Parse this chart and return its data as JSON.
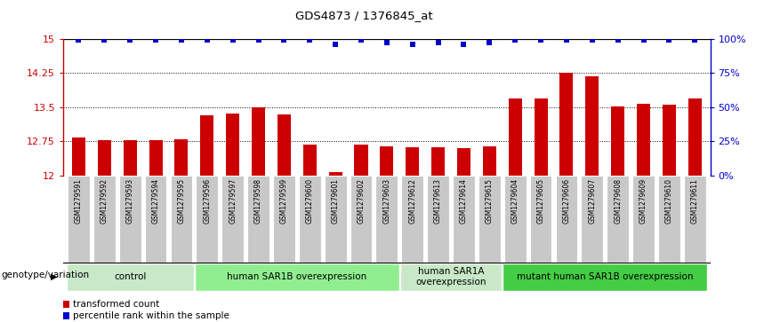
{
  "title": "GDS4873 / 1376845_at",
  "samples": [
    "GSM1279591",
    "GSM1279592",
    "GSM1279593",
    "GSM1279594",
    "GSM1279595",
    "GSM1279596",
    "GSM1279597",
    "GSM1279598",
    "GSM1279599",
    "GSM1279600",
    "GSM1279601",
    "GSM1279602",
    "GSM1279603",
    "GSM1279612",
    "GSM1279613",
    "GSM1279614",
    "GSM1279615",
    "GSM1279604",
    "GSM1279605",
    "GSM1279606",
    "GSM1279607",
    "GSM1279608",
    "GSM1279609",
    "GSM1279610",
    "GSM1279611"
  ],
  "bar_values": [
    12.83,
    12.77,
    12.78,
    12.78,
    12.79,
    13.32,
    13.35,
    13.49,
    13.33,
    12.67,
    12.08,
    12.67,
    12.63,
    12.62,
    12.61,
    12.59,
    12.63,
    13.68,
    13.68,
    14.25,
    14.18,
    13.52,
    13.57,
    13.55,
    13.68
  ],
  "percentile_values": [
    99,
    99,
    99,
    99,
    99,
    99,
    99,
    99,
    99,
    99,
    96,
    99,
    97,
    96,
    97,
    96,
    97,
    99,
    99,
    99,
    99,
    99,
    99,
    99,
    99
  ],
  "ylim_left": [
    12,
    15
  ],
  "ylim_right": [
    0,
    100
  ],
  "yticks_left": [
    12,
    12.75,
    13.5,
    14.25,
    15
  ],
  "yticks_right": [
    0,
    25,
    50,
    75,
    100
  ],
  "ytick_labels_left": [
    "12",
    "12.75",
    "13.5",
    "14.25",
    "15"
  ],
  "ytick_labels_right": [
    "0%",
    "25%",
    "50%",
    "75%",
    "100%"
  ],
  "bar_color": "#cc0000",
  "dot_color": "#0000cc",
  "groups": [
    {
      "label": "control",
      "start": 0,
      "end": 5,
      "color": "#c8e8c8"
    },
    {
      "label": "human SAR1B overexpression",
      "start": 5,
      "end": 13,
      "color": "#90ee90"
    },
    {
      "label": "human SAR1A\noverexpression",
      "start": 13,
      "end": 17,
      "color": "#c8e8c8"
    },
    {
      "label": "mutant human SAR1B overexpression",
      "start": 17,
      "end": 25,
      "color": "#44cc44"
    }
  ],
  "legend_items": [
    {
      "label": "transformed count",
      "color": "#cc0000"
    },
    {
      "label": "percentile rank within the sample",
      "color": "#0000cc"
    }
  ],
  "genotype_label": "genotype/variation",
  "dotted_lines": [
    12.75,
    13.5,
    14.25
  ],
  "sample_box_color": "#c8c8c8",
  "sample_box_edge": "#ffffff"
}
